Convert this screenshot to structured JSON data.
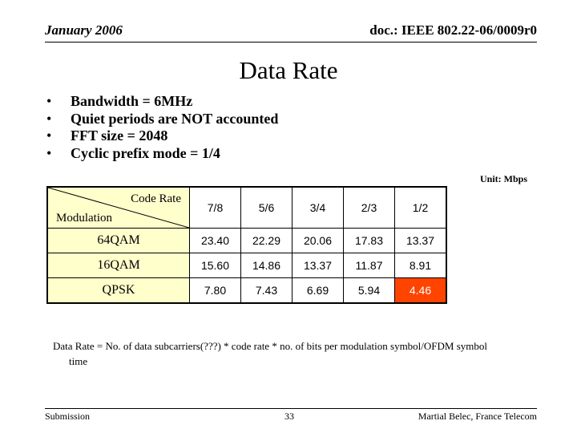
{
  "header": {
    "date": "January 2006",
    "doc": "doc.: IEEE 802.22-06/0009r0"
  },
  "title": "Data Rate",
  "bullets": [
    "Bandwidth = 6MHz",
    "Quiet periods are NOT accounted",
    "FFT size = 2048",
    "Cyclic prefix mode = 1/4"
  ],
  "unit": "Unit: Mbps",
  "table": {
    "corner_top": "Code Rate",
    "corner_bottom": "Modulation",
    "columns": [
      "7/8",
      "5/6",
      "3/4",
      "2/3",
      "1/2"
    ],
    "rows": [
      {
        "label": "64QAM",
        "values": [
          "23.40",
          "22.29",
          "20.06",
          "17.83",
          "13.37"
        ]
      },
      {
        "label": "16QAM",
        "values": [
          "15.60",
          "14.86",
          "13.37",
          "11.87",
          "8.91"
        ]
      },
      {
        "label": "QPSK",
        "values": [
          "7.80",
          "7.43",
          "6.69",
          "5.94",
          "4.46"
        ]
      }
    ],
    "highlight_color": "#ff4400",
    "label_bg": "#ffffcc"
  },
  "formula": {
    "line1": "Data Rate = No. of data subcarriers(???) * code rate * no. of bits per modulation symbol/OFDM symbol",
    "line2": "time"
  },
  "footer": {
    "left": "Submission",
    "page": "33",
    "author": "Martial Belec, France Telecom"
  }
}
